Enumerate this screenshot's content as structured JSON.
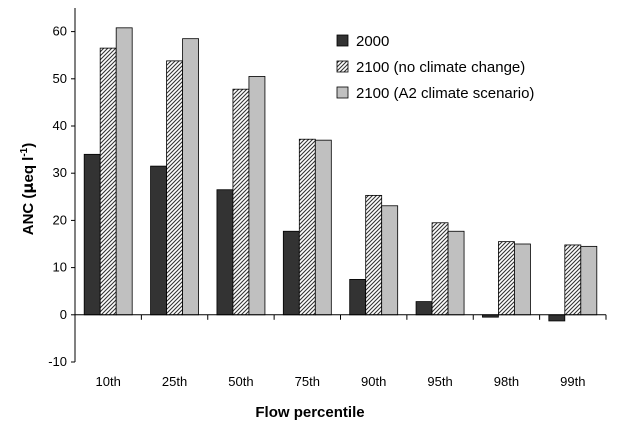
{
  "chart_data": {
    "type": "bar",
    "xlabel": "Flow percentile",
    "ylabel": {
      "base": "ANC (",
      "mu": "μ",
      "rest": "eq l",
      "sup": "-1",
      "close": ")"
    },
    "categories": [
      "10th",
      "25th",
      "50th",
      "75th",
      "90th",
      "95th",
      "98th",
      "99th"
    ],
    "ylim": [
      -10,
      65
    ],
    "yticks": [
      -10,
      0,
      10,
      20,
      30,
      40,
      50,
      60
    ],
    "legend_position": "top-right",
    "series": [
      {
        "name": "2000",
        "color": "#333333",
        "pattern": "solid",
        "values": [
          34.0,
          31.5,
          26.5,
          17.7,
          7.5,
          2.8,
          -0.5,
          -1.3
        ]
      },
      {
        "name": "2100 (no climate change)",
        "color": "#555555",
        "pattern": "hatch",
        "values": [
          56.5,
          53.8,
          47.8,
          37.2,
          25.3,
          19.5,
          15.5,
          14.8
        ]
      },
      {
        "name": "2100 (A2 climate scenario)",
        "color": "#c0c0c0",
        "pattern": "solid",
        "values": [
          60.8,
          58.5,
          50.5,
          37.0,
          23.1,
          17.7,
          15.0,
          14.5
        ]
      }
    ]
  }
}
